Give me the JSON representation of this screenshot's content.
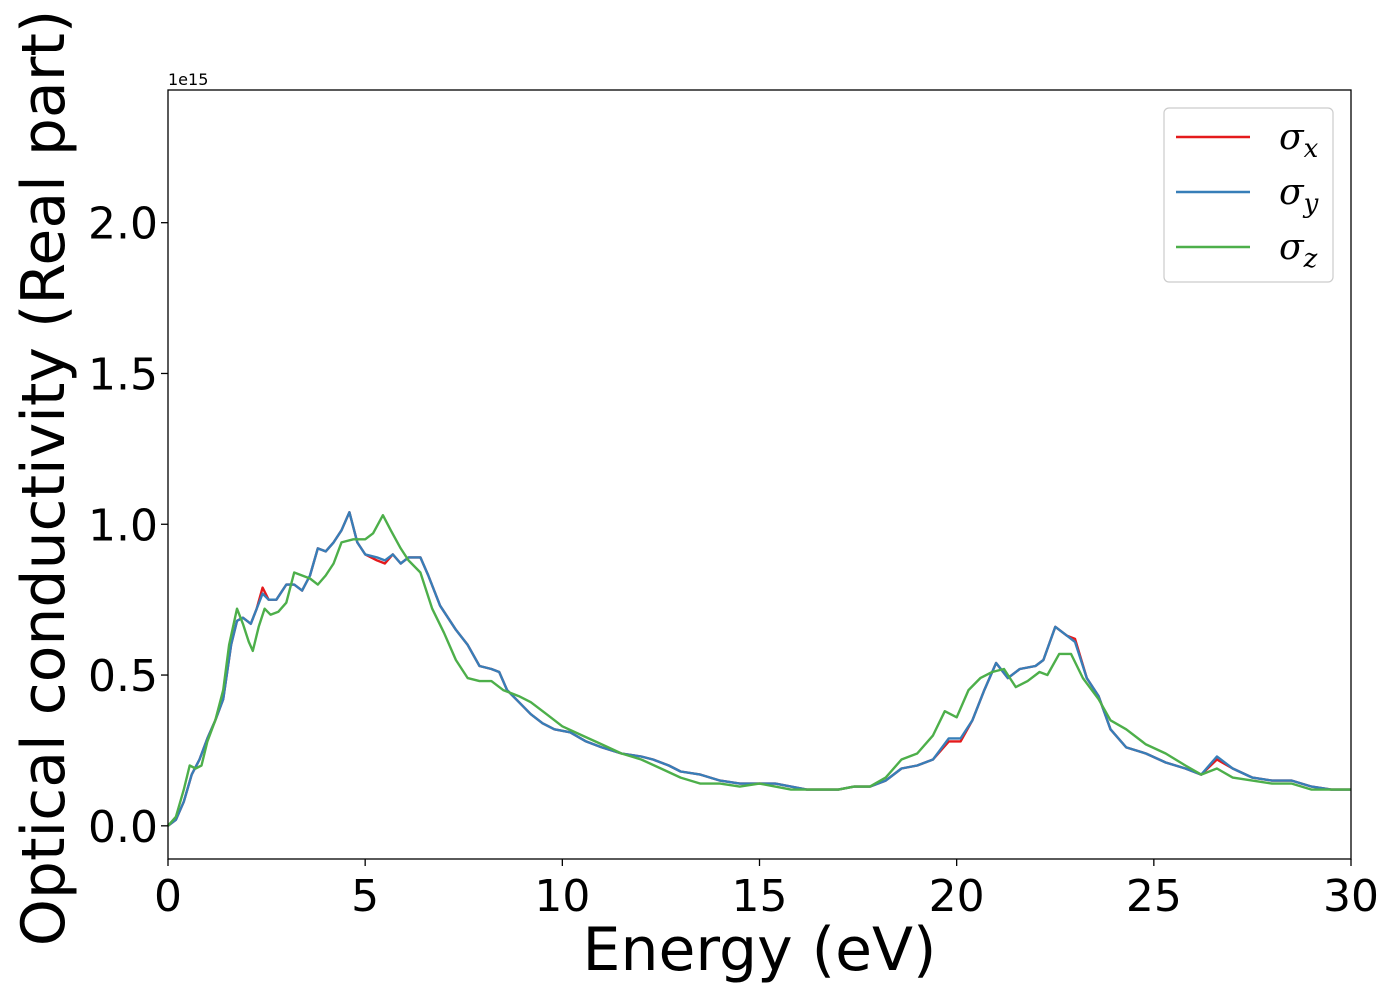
{
  "chart_data": {
    "type": "line",
    "title": "",
    "xlabel": "Energy (eV)",
    "ylabel": "Optical conductivity (Real part)",
    "y_offset_label": "1e15",
    "xlim": [
      0,
      30
    ],
    "ylim": [
      -0.11,
      2.44
    ],
    "xticks": [
      0,
      5,
      10,
      15,
      20,
      25,
      30
    ],
    "xtick_labels": [
      "0",
      "5",
      "10",
      "15",
      "20",
      "25",
      "30"
    ],
    "yticks": [
      0.0,
      0.5,
      1.0,
      1.5,
      2.0
    ],
    "ytick_labels": [
      "0.0",
      "0.5",
      "1.0",
      "1.5",
      "2.0"
    ],
    "grid": false,
    "legend_position": "top-right",
    "series": [
      {
        "name": "σx",
        "legend_symbol": "σ",
        "legend_subscript": "x",
        "color": "#e41a1c",
        "points": [
          [
            0,
            0
          ],
          [
            0.2,
            0.02
          ],
          [
            0.4,
            0.08
          ],
          [
            0.6,
            0.17
          ],
          [
            0.8,
            0.22
          ],
          [
            1.0,
            0.29
          ],
          [
            1.2,
            0.35
          ],
          [
            1.4,
            0.42
          ],
          [
            1.6,
            0.6
          ],
          [
            1.75,
            0.68
          ],
          [
            1.9,
            0.69
          ],
          [
            2.1,
            0.67
          ],
          [
            2.25,
            0.72
          ],
          [
            2.4,
            0.79
          ],
          [
            2.55,
            0.75
          ],
          [
            2.75,
            0.75
          ],
          [
            3.0,
            0.8
          ],
          [
            3.2,
            0.8
          ],
          [
            3.4,
            0.78
          ],
          [
            3.6,
            0.83
          ],
          [
            3.8,
            0.92
          ],
          [
            4.0,
            0.91
          ],
          [
            4.2,
            0.94
          ],
          [
            4.4,
            0.98
          ],
          [
            4.6,
            1.04
          ],
          [
            4.8,
            0.94
          ],
          [
            5.0,
            0.9
          ],
          [
            5.3,
            0.88
          ],
          [
            5.5,
            0.87
          ],
          [
            5.7,
            0.9
          ],
          [
            5.9,
            0.87
          ],
          [
            6.1,
            0.89
          ],
          [
            6.4,
            0.89
          ],
          [
            6.6,
            0.83
          ],
          [
            6.9,
            0.73
          ],
          [
            7.3,
            0.65
          ],
          [
            7.6,
            0.6
          ],
          [
            7.9,
            0.53
          ],
          [
            8.2,
            0.52
          ],
          [
            8.4,
            0.51
          ],
          [
            8.6,
            0.45
          ],
          [
            8.9,
            0.41
          ],
          [
            9.2,
            0.37
          ],
          [
            9.5,
            0.34
          ],
          [
            9.8,
            0.32
          ],
          [
            10.2,
            0.31
          ],
          [
            10.6,
            0.28
          ],
          [
            11.0,
            0.26
          ],
          [
            11.5,
            0.24
          ],
          [
            12.0,
            0.23
          ],
          [
            12.3,
            0.22
          ],
          [
            12.7,
            0.2
          ],
          [
            13.0,
            0.18
          ],
          [
            13.5,
            0.17
          ],
          [
            14.0,
            0.15
          ],
          [
            14.5,
            0.14
          ],
          [
            15.0,
            0.14
          ],
          [
            15.4,
            0.14
          ],
          [
            15.8,
            0.13
          ],
          [
            16.2,
            0.12
          ],
          [
            16.6,
            0.12
          ],
          [
            17.0,
            0.12
          ],
          [
            17.4,
            0.13
          ],
          [
            17.8,
            0.13
          ],
          [
            18.2,
            0.15
          ],
          [
            18.6,
            0.19
          ],
          [
            19.0,
            0.2
          ],
          [
            19.4,
            0.22
          ],
          [
            19.8,
            0.28
          ],
          [
            20.1,
            0.28
          ],
          [
            20.4,
            0.35
          ],
          [
            20.7,
            0.45
          ],
          [
            21.0,
            0.54
          ],
          [
            21.3,
            0.49
          ],
          [
            21.6,
            0.52
          ],
          [
            22.0,
            0.53
          ],
          [
            22.2,
            0.55
          ],
          [
            22.5,
            0.66
          ],
          [
            22.8,
            0.63
          ],
          [
            23.0,
            0.62
          ],
          [
            23.3,
            0.49
          ],
          [
            23.6,
            0.43
          ],
          [
            23.9,
            0.32
          ],
          [
            24.3,
            0.26
          ],
          [
            24.8,
            0.24
          ],
          [
            25.3,
            0.21
          ],
          [
            25.8,
            0.19
          ],
          [
            26.2,
            0.17
          ],
          [
            26.6,
            0.22
          ],
          [
            27.0,
            0.19
          ],
          [
            27.5,
            0.16
          ],
          [
            28.0,
            0.15
          ],
          [
            28.5,
            0.15
          ],
          [
            29.0,
            0.13
          ],
          [
            29.5,
            0.12
          ],
          [
            30.0,
            0.12
          ]
        ]
      },
      {
        "name": "σy",
        "legend_symbol": "σ",
        "legend_subscript": "y",
        "color": "#377eb8",
        "points": [
          [
            0,
            0
          ],
          [
            0.2,
            0.02
          ],
          [
            0.4,
            0.08
          ],
          [
            0.6,
            0.17
          ],
          [
            0.8,
            0.22
          ],
          [
            1.0,
            0.29
          ],
          [
            1.2,
            0.35
          ],
          [
            1.4,
            0.42
          ],
          [
            1.6,
            0.6
          ],
          [
            1.75,
            0.68
          ],
          [
            1.9,
            0.69
          ],
          [
            2.1,
            0.67
          ],
          [
            2.25,
            0.72
          ],
          [
            2.4,
            0.77
          ],
          [
            2.55,
            0.75
          ],
          [
            2.75,
            0.75
          ],
          [
            3.0,
            0.8
          ],
          [
            3.2,
            0.8
          ],
          [
            3.4,
            0.78
          ],
          [
            3.6,
            0.83
          ],
          [
            3.8,
            0.92
          ],
          [
            4.0,
            0.91
          ],
          [
            4.2,
            0.94
          ],
          [
            4.4,
            0.98
          ],
          [
            4.6,
            1.04
          ],
          [
            4.8,
            0.94
          ],
          [
            5.0,
            0.9
          ],
          [
            5.3,
            0.89
          ],
          [
            5.5,
            0.88
          ],
          [
            5.7,
            0.9
          ],
          [
            5.9,
            0.87
          ],
          [
            6.1,
            0.89
          ],
          [
            6.4,
            0.89
          ],
          [
            6.6,
            0.83
          ],
          [
            6.9,
            0.73
          ],
          [
            7.3,
            0.65
          ],
          [
            7.6,
            0.6
          ],
          [
            7.9,
            0.53
          ],
          [
            8.2,
            0.52
          ],
          [
            8.4,
            0.51
          ],
          [
            8.6,
            0.45
          ],
          [
            8.9,
            0.41
          ],
          [
            9.2,
            0.37
          ],
          [
            9.5,
            0.34
          ],
          [
            9.8,
            0.32
          ],
          [
            10.2,
            0.31
          ],
          [
            10.6,
            0.28
          ],
          [
            11.0,
            0.26
          ],
          [
            11.5,
            0.24
          ],
          [
            12.0,
            0.23
          ],
          [
            12.3,
            0.22
          ],
          [
            12.7,
            0.2
          ],
          [
            13.0,
            0.18
          ],
          [
            13.5,
            0.17
          ],
          [
            14.0,
            0.15
          ],
          [
            14.5,
            0.14
          ],
          [
            15.0,
            0.14
          ],
          [
            15.4,
            0.14
          ],
          [
            15.8,
            0.13
          ],
          [
            16.2,
            0.12
          ],
          [
            16.6,
            0.12
          ],
          [
            17.0,
            0.12
          ],
          [
            17.4,
            0.13
          ],
          [
            17.8,
            0.13
          ],
          [
            18.2,
            0.15
          ],
          [
            18.6,
            0.19
          ],
          [
            19.0,
            0.2
          ],
          [
            19.4,
            0.22
          ],
          [
            19.8,
            0.29
          ],
          [
            20.1,
            0.29
          ],
          [
            20.4,
            0.35
          ],
          [
            20.7,
            0.45
          ],
          [
            21.0,
            0.54
          ],
          [
            21.3,
            0.49
          ],
          [
            21.6,
            0.52
          ],
          [
            22.0,
            0.53
          ],
          [
            22.2,
            0.55
          ],
          [
            22.5,
            0.66
          ],
          [
            22.8,
            0.63
          ],
          [
            23.0,
            0.61
          ],
          [
            23.3,
            0.49
          ],
          [
            23.6,
            0.43
          ],
          [
            23.9,
            0.32
          ],
          [
            24.3,
            0.26
          ],
          [
            24.8,
            0.24
          ],
          [
            25.3,
            0.21
          ],
          [
            25.8,
            0.19
          ],
          [
            26.2,
            0.17
          ],
          [
            26.6,
            0.23
          ],
          [
            27.0,
            0.19
          ],
          [
            27.5,
            0.16
          ],
          [
            28.0,
            0.15
          ],
          [
            28.5,
            0.15
          ],
          [
            29.0,
            0.13
          ],
          [
            29.5,
            0.12
          ],
          [
            30.0,
            0.12
          ]
        ]
      },
      {
        "name": "σz",
        "legend_symbol": "σ",
        "legend_subscript": "z",
        "color": "#4daf4a",
        "points": [
          [
            0,
            0
          ],
          [
            0.2,
            0.03
          ],
          [
            0.4,
            0.12
          ],
          [
            0.55,
            0.2
          ],
          [
            0.7,
            0.19
          ],
          [
            0.85,
            0.2
          ],
          [
            1.0,
            0.28
          ],
          [
            1.2,
            0.35
          ],
          [
            1.4,
            0.45
          ],
          [
            1.55,
            0.6
          ],
          [
            1.75,
            0.72
          ],
          [
            1.9,
            0.67
          ],
          [
            2.05,
            0.61
          ],
          [
            2.15,
            0.58
          ],
          [
            2.3,
            0.66
          ],
          [
            2.45,
            0.72
          ],
          [
            2.6,
            0.7
          ],
          [
            2.8,
            0.71
          ],
          [
            3.0,
            0.74
          ],
          [
            3.2,
            0.84
          ],
          [
            3.4,
            0.83
          ],
          [
            3.6,
            0.82
          ],
          [
            3.8,
            0.8
          ],
          [
            4.0,
            0.83
          ],
          [
            4.2,
            0.87
          ],
          [
            4.4,
            0.94
          ],
          [
            4.7,
            0.95
          ],
          [
            5.0,
            0.95
          ],
          [
            5.2,
            0.97
          ],
          [
            5.45,
            1.03
          ],
          [
            5.65,
            0.98
          ],
          [
            5.9,
            0.92
          ],
          [
            6.1,
            0.88
          ],
          [
            6.4,
            0.84
          ],
          [
            6.7,
            0.72
          ],
          [
            7.0,
            0.64
          ],
          [
            7.3,
            0.55
          ],
          [
            7.6,
            0.49
          ],
          [
            7.9,
            0.48
          ],
          [
            8.2,
            0.48
          ],
          [
            8.5,
            0.45
          ],
          [
            8.9,
            0.43
          ],
          [
            9.2,
            0.41
          ],
          [
            9.6,
            0.37
          ],
          [
            10.0,
            0.33
          ],
          [
            10.5,
            0.3
          ],
          [
            11.0,
            0.27
          ],
          [
            11.5,
            0.24
          ],
          [
            12.0,
            0.22
          ],
          [
            12.5,
            0.19
          ],
          [
            13.0,
            0.16
          ],
          [
            13.5,
            0.14
          ],
          [
            14.0,
            0.14
          ],
          [
            14.5,
            0.13
          ],
          [
            15.0,
            0.14
          ],
          [
            15.4,
            0.13
          ],
          [
            15.8,
            0.12
          ],
          [
            16.2,
            0.12
          ],
          [
            16.6,
            0.12
          ],
          [
            17.0,
            0.12
          ],
          [
            17.4,
            0.13
          ],
          [
            17.8,
            0.13
          ],
          [
            18.2,
            0.16
          ],
          [
            18.6,
            0.22
          ],
          [
            19.0,
            0.24
          ],
          [
            19.4,
            0.3
          ],
          [
            19.7,
            0.38
          ],
          [
            20.0,
            0.36
          ],
          [
            20.3,
            0.45
          ],
          [
            20.6,
            0.49
          ],
          [
            20.9,
            0.51
          ],
          [
            21.2,
            0.52
          ],
          [
            21.5,
            0.46
          ],
          [
            21.8,
            0.48
          ],
          [
            22.1,
            0.51
          ],
          [
            22.3,
            0.5
          ],
          [
            22.6,
            0.57
          ],
          [
            22.9,
            0.57
          ],
          [
            23.2,
            0.49
          ],
          [
            23.6,
            0.42
          ],
          [
            23.9,
            0.35
          ],
          [
            24.3,
            0.32
          ],
          [
            24.8,
            0.27
          ],
          [
            25.3,
            0.24
          ],
          [
            25.8,
            0.2
          ],
          [
            26.2,
            0.17
          ],
          [
            26.6,
            0.19
          ],
          [
            27.0,
            0.16
          ],
          [
            27.5,
            0.15
          ],
          [
            28.0,
            0.14
          ],
          [
            28.5,
            0.14
          ],
          [
            29.0,
            0.12
          ],
          [
            29.5,
            0.12
          ],
          [
            30.0,
            0.12
          ]
        ]
      }
    ]
  }
}
